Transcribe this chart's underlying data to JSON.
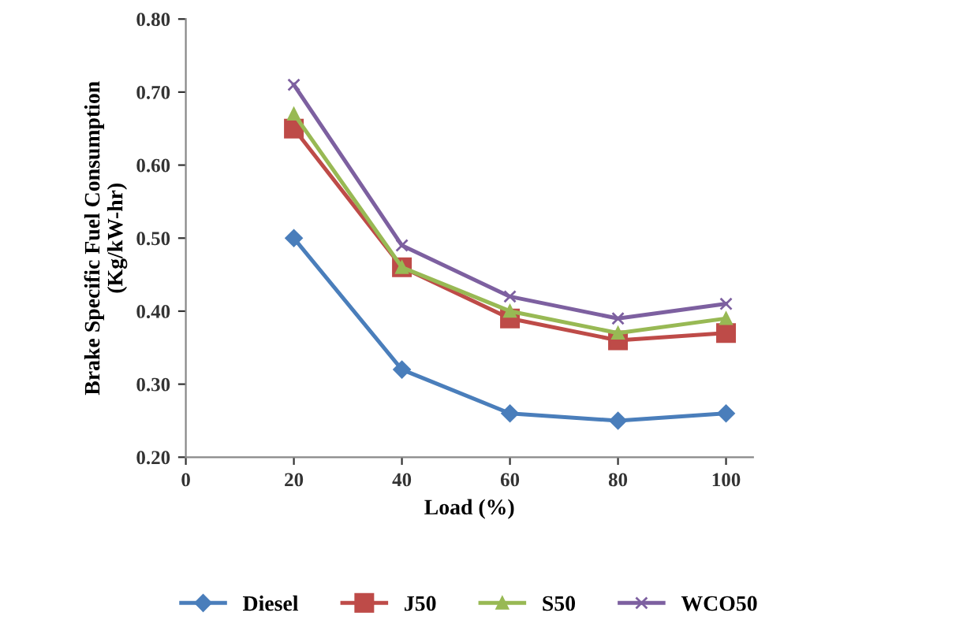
{
  "chart_data": {
    "type": "line",
    "xlabel": "Load (%)",
    "ylabel": "Brake Specific Fuel Consumption\n(Kg/kW-hr)",
    "x": [
      20,
      40,
      60,
      80,
      100
    ],
    "series": [
      {
        "name": "Diesel",
        "color": "#4a7ebb",
        "marker": "diamond",
        "values": [
          0.5,
          0.32,
          0.26,
          0.25,
          0.26
        ]
      },
      {
        "name": "J50",
        "color": "#be4b48",
        "marker": "square",
        "values": [
          0.65,
          0.46,
          0.39,
          0.36,
          0.37
        ]
      },
      {
        "name": "S50",
        "color": "#98b954",
        "marker": "triangle",
        "values": [
          0.67,
          0.46,
          0.4,
          0.37,
          0.39
        ]
      },
      {
        "name": "WCO50",
        "color": "#7d60a0",
        "marker": "cross",
        "values": [
          0.71,
          0.49,
          0.42,
          0.39,
          0.41
        ]
      }
    ],
    "xlim": [
      0,
      105
    ],
    "xticks": [
      0,
      20,
      40,
      60,
      80,
      100
    ],
    "ylim": [
      0.2,
      0.8
    ],
    "yticks": [
      {
        "value": 0.2,
        "label": "0.20"
      },
      {
        "value": 0.3,
        "label": "0.30"
      },
      {
        "value": 0.4,
        "label": "0.40"
      },
      {
        "value": 0.5,
        "label": "0.50"
      },
      {
        "value": 0.6,
        "label": "0.60"
      },
      {
        "value": 0.7,
        "label": "0.70"
      },
      {
        "value": 0.8,
        "label": "0.80"
      }
    ],
    "grid": false,
    "legend": "bottom",
    "line_style": "solid"
  }
}
